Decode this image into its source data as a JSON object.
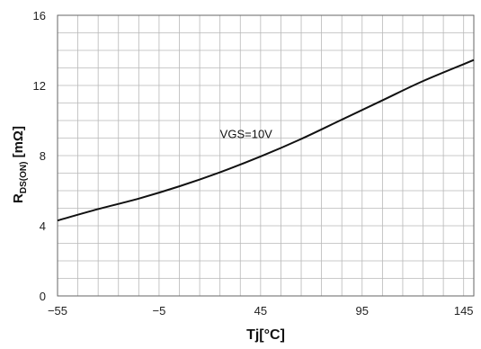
{
  "chart_data": {
    "type": "line",
    "xlabel": "Tj[°C]",
    "ylabel": {
      "main": "R",
      "subscript": "DS(ON)",
      "unit": " [mΩ]"
    },
    "xlim": [
      -55,
      150
    ],
    "ylim": [
      0,
      16
    ],
    "x_ticks": [
      -55,
      -5,
      45,
      95,
      145
    ],
    "y_ticks": [
      0,
      4,
      8,
      12,
      16
    ],
    "x_minor_step": 10,
    "y_minor_step": 1,
    "grid": true,
    "annotations": [
      {
        "text": "VGS=10V",
        "x": 25,
        "y": 9.0
      }
    ],
    "series": [
      {
        "x": [
          -55,
          -35,
          -15,
          5,
          25,
          45,
          65,
          85,
          105,
          125,
          150
        ],
        "y": [
          4.3,
          4.95,
          5.55,
          6.25,
          7.05,
          7.95,
          8.95,
          10.05,
          11.15,
          12.25,
          13.45
        ]
      }
    ],
    "colors": {
      "line": "#111111",
      "grid": "#b8b8b8",
      "axis": "#666666"
    }
  }
}
